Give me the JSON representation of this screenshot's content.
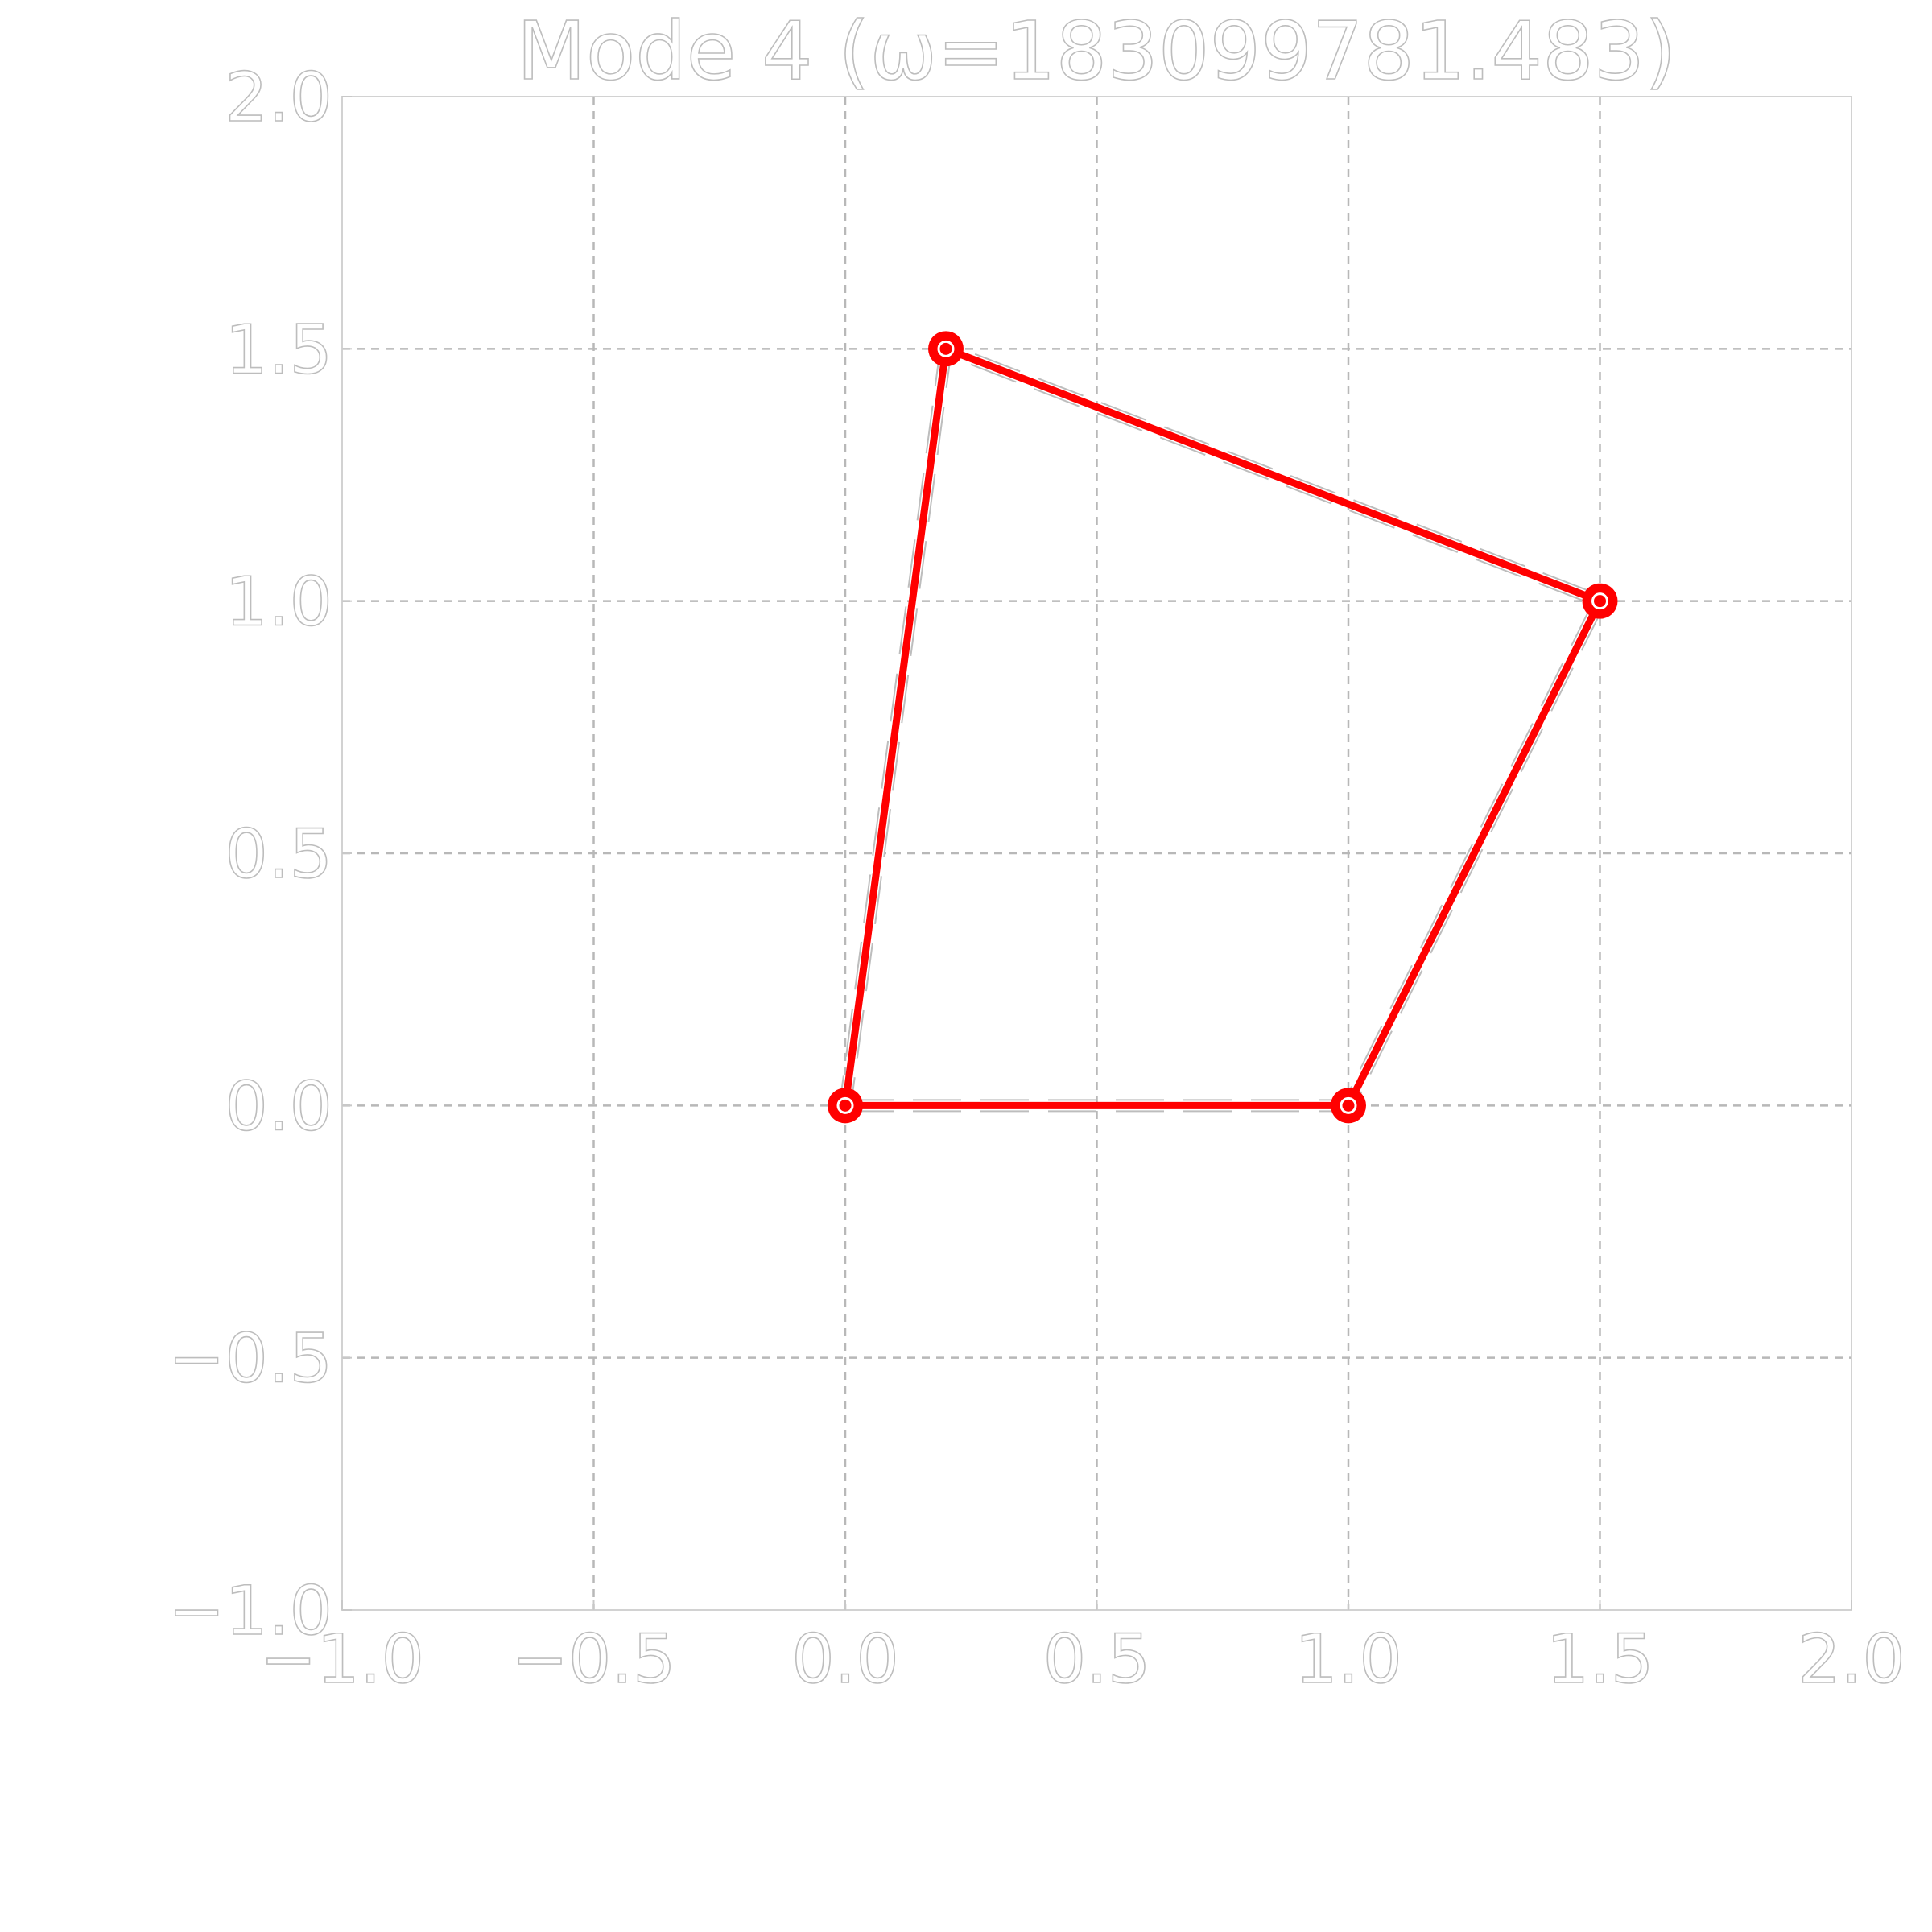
{
  "chart_data": {
    "type": "line",
    "title": "Mode 4 (ω=183099781.483)",
    "xlabel": "",
    "ylabel": "",
    "xlim": [
      -1.0,
      2.0
    ],
    "ylim": [
      -1.0,
      2.0
    ],
    "grid": true,
    "x_ticks": [
      -1.0,
      -0.5,
      0.0,
      0.5,
      1.0,
      1.5,
      2.0
    ],
    "y_ticks": [
      -1.0,
      -0.5,
      0.0,
      0.5,
      1.0,
      1.5,
      2.0
    ],
    "x_tick_labels": [
      "−1.0",
      "−0.5",
      "0.0",
      "0.5",
      "1.0",
      "1.5",
      "2.0"
    ],
    "y_tick_labels": [
      "−1.0",
      "−0.5",
      "0.0",
      "0.5",
      "1.0",
      "1.5",
      "2.0"
    ],
    "series": [
      {
        "style": "dashed",
        "color": "#bdbdbd",
        "points": [
          [
            0.0,
            0.0
          ],
          [
            1.0,
            0.0
          ],
          [
            1.5,
            1.0
          ],
          [
            0.2,
            1.5
          ],
          [
            0.0,
            0.0
          ]
        ]
      },
      {
        "style": "solid",
        "color": "#ff0000",
        "markers": true,
        "points": [
          [
            0.0,
            0.0
          ],
          [
            1.0,
            0.0
          ],
          [
            1.5,
            1.0
          ],
          [
            0.2,
            1.5
          ],
          [
            0.0,
            0.0
          ]
        ]
      }
    ]
  }
}
